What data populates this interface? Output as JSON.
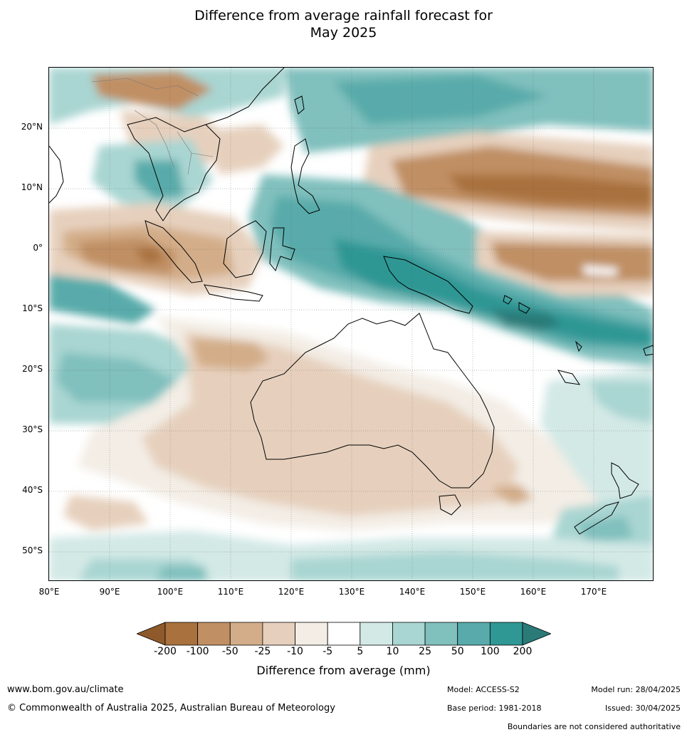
{
  "title_line1": "Difference from average rainfall forecast for",
  "title_line2": "May 2025",
  "lat_labels": [
    "20°N",
    "10°N",
    "0°",
    "10°S",
    "20°S",
    "30°S",
    "40°S",
    "50°S"
  ],
  "lon_labels": [
    "80°E",
    "90°E",
    "100°E",
    "110°E",
    "120°E",
    "130°E",
    "140°E",
    "150°E",
    "160°E",
    "170°E"
  ],
  "colorbar": {
    "ticks": [
      "-200",
      "-100",
      "-50",
      "-25",
      "-10",
      "-5",
      "5",
      "10",
      "25",
      "50",
      "100",
      "200"
    ],
    "colors": [
      "#8e5a2b",
      "#a9713d",
      "#c08f63",
      "#d3ad89",
      "#e6d0bd",
      "#f3ede5",
      "#ffffff",
      "#d3e9e6",
      "#a9d5d2",
      "#80c0bd",
      "#58abaa",
      "#2f9794",
      "#2a7a78"
    ],
    "label": "Difference from average (mm)"
  },
  "footer": {
    "website": "www.bom.gov.au/climate",
    "copyright": "© Commonwealth of Australia 2025, Australian Bureau of Meteorology",
    "model": "Model: ACCESS-S2",
    "base_period": "Base period: 1981-2018",
    "model_run": "Model run: 28/04/2025",
    "issued": "Issued: 30/04/2025",
    "disclaimer": "Boundaries are not considered authoritative"
  }
}
